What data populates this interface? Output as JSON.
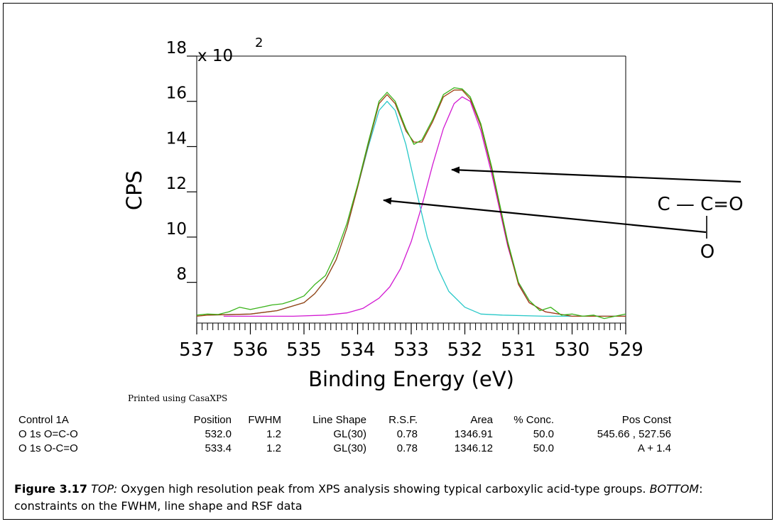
{
  "chart_data": {
    "type": "line",
    "ylabel": "CPS",
    "xlabel": "Binding Energy (eV)",
    "y_multiplier": "x 10",
    "y_multiplier_exp": "2",
    "xlim": [
      537,
      529
    ],
    "ylim": [
      6.2,
      18.0
    ],
    "x_reversed": true,
    "x_ticks": [
      "537",
      "536",
      "535",
      "534",
      "533",
      "532",
      "531",
      "530",
      "529"
    ],
    "y_ticks": [
      "18",
      "16",
      "14",
      "12",
      "10",
      "8"
    ],
    "series": [
      {
        "color": "#d21ad2",
        "x": [
          536.5,
          535.2,
          534.6,
          534.2,
          533.9,
          533.6,
          533.4,
          533.2,
          533.0,
          532.8,
          532.6,
          532.4,
          532.2,
          532.05,
          531.9,
          531.7,
          531.5,
          531.2,
          531.0,
          530.8,
          530.5,
          530.0,
          529.0
        ],
        "values": [
          6.5,
          6.5,
          6.55,
          6.65,
          6.85,
          7.3,
          7.8,
          8.6,
          9.8,
          11.4,
          13.2,
          14.8,
          15.9,
          16.2,
          16.0,
          14.7,
          12.8,
          9.6,
          7.95,
          7.1,
          6.7,
          6.5,
          6.5
        ]
      },
      {
        "color": "#28c8c8",
        "x": [
          536.8,
          536.0,
          535.5,
          535.0,
          534.8,
          534.6,
          534.4,
          534.2,
          534.0,
          533.8,
          533.6,
          533.45,
          533.3,
          533.1,
          532.9,
          532.7,
          532.5,
          532.3,
          532.0,
          531.7,
          531.3,
          530.5,
          529.0
        ],
        "values": [
          6.55,
          6.6,
          6.75,
          7.1,
          7.5,
          8.1,
          9.0,
          10.4,
          12.2,
          14.0,
          15.6,
          16.0,
          15.6,
          14.1,
          12.0,
          10.0,
          8.6,
          7.6,
          6.9,
          6.6,
          6.55,
          6.5,
          6.5
        ]
      },
      {
        "color": "#a04010",
        "x": [
          537.0,
          536.8,
          536.0,
          535.5,
          535.0,
          534.8,
          534.6,
          534.4,
          534.2,
          534.0,
          533.8,
          533.6,
          533.45,
          533.3,
          533.1,
          532.95,
          532.8,
          532.6,
          532.4,
          532.2,
          532.05,
          531.9,
          531.7,
          531.5,
          531.2,
          531.0,
          530.8,
          530.5,
          530.0,
          529.0
        ],
        "values": [
          6.5,
          6.55,
          6.6,
          6.75,
          7.1,
          7.5,
          8.1,
          9.0,
          10.4,
          12.2,
          14.1,
          15.9,
          16.3,
          15.9,
          14.7,
          14.2,
          14.2,
          15.1,
          16.2,
          16.5,
          16.5,
          16.1,
          14.9,
          13.0,
          9.7,
          7.9,
          7.1,
          6.7,
          6.5,
          6.5
        ]
      },
      {
        "color": "#3ab31a",
        "x": [
          537.0,
          536.8,
          536.6,
          536.4,
          536.2,
          536.0,
          535.8,
          535.6,
          535.4,
          535.2,
          535.0,
          534.8,
          534.6,
          534.4,
          534.2,
          534.0,
          533.8,
          533.6,
          533.45,
          533.3,
          533.1,
          532.95,
          532.8,
          532.6,
          532.4,
          532.2,
          532.05,
          531.9,
          531.7,
          531.5,
          531.2,
          531.0,
          530.8,
          530.6,
          530.4,
          530.2,
          530.0,
          529.8,
          529.6,
          529.4,
          529.2,
          529.0
        ],
        "values": [
          6.55,
          6.6,
          6.58,
          6.7,
          6.9,
          6.8,
          6.9,
          7.0,
          7.05,
          7.2,
          7.4,
          7.9,
          8.3,
          9.3,
          10.6,
          12.3,
          14.2,
          16.0,
          16.4,
          16.0,
          14.8,
          14.1,
          14.3,
          15.2,
          16.3,
          16.6,
          16.55,
          16.2,
          15.0,
          13.1,
          9.8,
          8.0,
          7.2,
          6.75,
          6.9,
          6.55,
          6.6,
          6.5,
          6.55,
          6.4,
          6.5,
          6.6
        ]
      }
    ],
    "annotations": [
      {
        "text": "C — C=O",
        "points_to_x": 532.3
      },
      {
        "text": "O",
        "points_to_x": 533.4
      }
    ]
  },
  "printed_note": "Printed using CasaXPS",
  "table": {
    "headers": [
      "Control 1A",
      "Position",
      "FWHM",
      "Line Shape",
      "R.S.F.",
      "Area",
      "% Conc.",
      "Pos Const"
    ],
    "rows": [
      [
        "O 1s O=C-O",
        "532.0",
        "1.2",
        "GL(30)",
        "0.78",
        "1346.91",
        "50.0",
        "545.66 , 527.56"
      ],
      [
        "O 1s O-C=O",
        "533.4",
        "1.2",
        "GL(30)",
        "0.78",
        "1346.12",
        "50.0",
        "A + 1.4"
      ]
    ]
  },
  "caption": {
    "label": "Figure 3.17",
    "top_word": "TOP:",
    "top_text": " Oxygen high resolution peak from XPS analysis showing typical carboxylic acid-type groups. ",
    "bottom_word": "BOTTOM",
    "bottom_text": ": constraints on the FWHM, line shape and RSF data"
  }
}
